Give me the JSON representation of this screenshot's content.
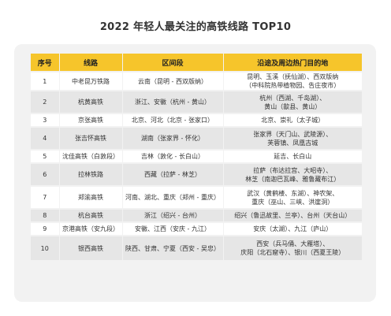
{
  "title": "2022 年轻人最关注的高铁线路 TOP10",
  "table": {
    "headers": [
      "序号",
      "线路",
      "区间段",
      "沿途及周边热门目的地"
    ],
    "rows": [
      {
        "rank": "1",
        "line": "中老昆万铁路",
        "section": "云南（昆明 - 西双版纳）",
        "sites": [
          "昆明、玉溪（抚仙湖）、西双版纳",
          "（中科院热带植物园、告庄夜市）"
        ]
      },
      {
        "rank": "2",
        "line": "杭黄高铁",
        "section": "浙江、安徽（杭州 - 黄山）",
        "sites": [
          "杭州（西湖、千岛湖）、",
          "黄山（歙县、黄山）"
        ]
      },
      {
        "rank": "3",
        "line": "京张高铁",
        "section": "北京、河北（北京 - 张家口）",
        "sites": [
          "北京、崇礼（太子城）"
        ]
      },
      {
        "rank": "4",
        "line": "张吉怀高铁",
        "section": "湖南（张家界 - 怀化）",
        "sites": [
          "张家界（天门山、武陵源）、",
          "芙蓉镇、凤凰古城"
        ]
      },
      {
        "rank": "5",
        "line": "沈佳高铁（白敦段）",
        "section": "吉林（敦化 - 长白山）",
        "sites": [
          "延吉、长白山"
        ]
      },
      {
        "rank": "6",
        "line": "拉林铁路",
        "section": "西藏（拉萨 - 林芝）",
        "sites": [
          "拉萨（布达拉宫、大昭寺）、",
          "林芝（南迦巴瓦峰、雅鲁藏布江）"
        ]
      },
      {
        "rank": "7",
        "line": "郑渝高铁",
        "section": "河南、湖北、重庆（郑州 - 重庆）",
        "sites": [
          "武汉（黄鹤楼、东湖）、神农架、",
          "重庆（巫山、三峡、洪崖洞）"
        ]
      },
      {
        "rank": "8",
        "line": "杭台高铁",
        "section": "浙江（绍兴 - 台州）",
        "sites": [
          "绍兴（鲁迅故里、兰亭）、台州（天台山）"
        ]
      },
      {
        "rank": "9",
        "line": "京港高铁（安九段）",
        "section": "安徽、江西（安庆 - 九江）",
        "sites": [
          "安庆（太湖）、九江（庐山）"
        ]
      },
      {
        "rank": "10",
        "line": "银西高铁",
        "section": "陕西、甘肃、宁夏（西安 - 吴忠）",
        "sites": [
          "西安（兵马俑、大雁塔）、",
          "庆阳（北石窟寺）、银川（西夏王陵）"
        ]
      }
    ]
  }
}
